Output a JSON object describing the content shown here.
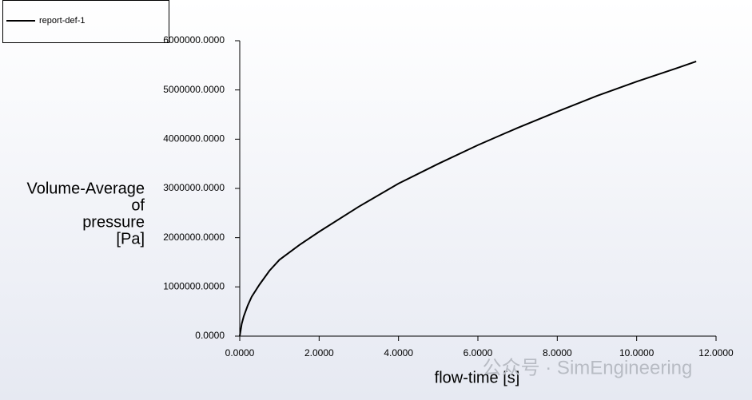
{
  "chart_data": {
    "type": "line",
    "xlabel": "flow-time [s]",
    "ylabel": [
      "Volume-Average",
      "of",
      "pressure",
      "[Pa]"
    ],
    "watermark": "公众号 · SimEngineering",
    "x": [
      0,
      0.05,
      0.1,
      0.2,
      0.3,
      0.5,
      0.75,
      1,
      1.5,
      2,
      3,
      4,
      5,
      6,
      7,
      8,
      9,
      10,
      11,
      11.5
    ],
    "series": [
      {
        "name": "report-def-1",
        "color": "#000000",
        "values": [
          0,
          250000,
          400000,
          620000,
          800000,
          1050000,
          1330000,
          1550000,
          1850000,
          2120000,
          2630000,
          3100000,
          3500000,
          3880000,
          4230000,
          4560000,
          4880000,
          5170000,
          5440000,
          5580000
        ]
      }
    ],
    "xlim": [
      0,
      12
    ],
    "ylim": [
      0,
      6000000
    ],
    "xticks": [
      {
        "value": 0,
        "label": "0.0000"
      },
      {
        "value": 2,
        "label": "2.0000"
      },
      {
        "value": 4,
        "label": "4.0000"
      },
      {
        "value": 6,
        "label": "6.0000"
      },
      {
        "value": 8,
        "label": "8.0000"
      },
      {
        "value": 10,
        "label": "10.0000"
      },
      {
        "value": 12,
        "label": "12.0000"
      }
    ],
    "yticks": [
      {
        "value": 0,
        "label": "0.0000"
      },
      {
        "value": 1000000,
        "label": "1000000.0000"
      },
      {
        "value": 2000000,
        "label": "2000000.0000"
      },
      {
        "value": 3000000,
        "label": "3000000.0000"
      },
      {
        "value": 4000000,
        "label": "4000000.0000"
      },
      {
        "value": 5000000,
        "label": "5000000.0000"
      },
      {
        "value": 6000000,
        "label": "6000000.0000"
      }
    ],
    "grid": false
  }
}
